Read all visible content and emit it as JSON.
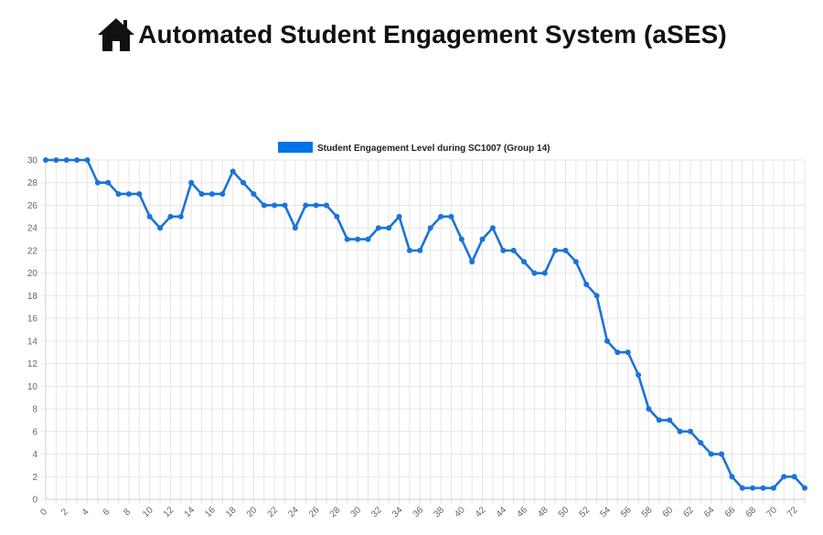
{
  "header": {
    "title": "Automated Student Engagement System (aSES)",
    "icon": "home-icon"
  },
  "chart_data": {
    "type": "line",
    "legend": {
      "label": "Student Engagement Level during SC1007 (Group 14)",
      "color": "#0073e6",
      "placement": "top-center"
    },
    "x": [
      0,
      1,
      2,
      3,
      4,
      5,
      6,
      7,
      8,
      9,
      10,
      11,
      12,
      13,
      14,
      15,
      16,
      17,
      18,
      19,
      20,
      21,
      22,
      23,
      24,
      25,
      26,
      27,
      28,
      29,
      30,
      31,
      32,
      33,
      34,
      35,
      36,
      37,
      38,
      39,
      40,
      41,
      42,
      43,
      44,
      45,
      46,
      47,
      48,
      49,
      50,
      51,
      52,
      53,
      54,
      55,
      56,
      57,
      58,
      59,
      60,
      61,
      62,
      63,
      64,
      65,
      66,
      67,
      68,
      69,
      70,
      71,
      72,
      73
    ],
    "series": [
      {
        "name": "Student Engagement Level during SC1007 (Group 14)",
        "color": "#1a73d9",
        "values": [
          30,
          30,
          30,
          30,
          30,
          28,
          28,
          27,
          27,
          27,
          25,
          24,
          25,
          25,
          28,
          27,
          27,
          27,
          29,
          28,
          27,
          26,
          26,
          26,
          24,
          26,
          26,
          26,
          25,
          23,
          23,
          23,
          24,
          24,
          25,
          22,
          22,
          24,
          25,
          25,
          23,
          21,
          23,
          24,
          22,
          22,
          21,
          20,
          20,
          22,
          22,
          21,
          19,
          18,
          14,
          13,
          13,
          11,
          8,
          7,
          7,
          6,
          6,
          5,
          4,
          4,
          2,
          1,
          1,
          1,
          1,
          2,
          2,
          1
        ]
      }
    ],
    "xticks": [
      "0",
      "2",
      "4",
      "6",
      "8",
      "10",
      "12",
      "14",
      "16",
      "18",
      "20",
      "22",
      "24",
      "26",
      "28",
      "30",
      "32",
      "34",
      "36",
      "38",
      "40",
      "42",
      "44",
      "46",
      "48",
      "50",
      "52",
      "54",
      "56",
      "58",
      "60",
      "62",
      "64",
      "66",
      "68",
      "70",
      "72"
    ],
    "yticks": [
      "0",
      "2",
      "4",
      "6",
      "8",
      "10",
      "12",
      "14",
      "16",
      "18",
      "20",
      "22",
      "24",
      "26",
      "28",
      "30"
    ],
    "xlim": [
      0,
      73
    ],
    "ylim": [
      0,
      30
    ],
    "grid": true,
    "xlabel": "",
    "ylabel": ""
  }
}
